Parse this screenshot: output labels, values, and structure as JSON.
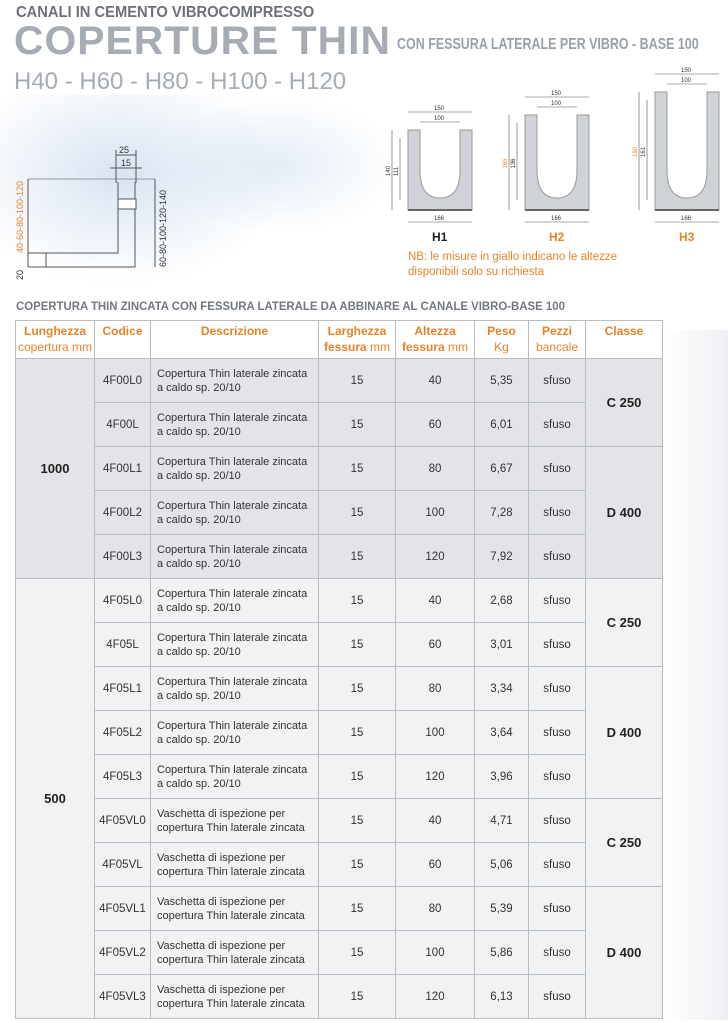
{
  "header": {
    "kicker": "CANALI IN CEMENTO VIBROCOMPRESSO",
    "title": "COPERTURE THIN",
    "subtitle": "CON FESSURA LATERALE PER VIBRO - BASE 100",
    "heights": "H40 - H60 - H80 - H100 - H120"
  },
  "section_drawing": {
    "dim_top_outer": "25",
    "dim_top_inner": "15",
    "dim_left": "40-60-80-100-120",
    "dim_left_bottom": "20",
    "dim_right": "60-80-100-120-140"
  },
  "profiles": [
    {
      "label": "H1",
      "color": "#222222",
      "width_outer": "150",
      "width_inner": "100",
      "height_outer": "140",
      "height_inner": "111",
      "base": "166"
    },
    {
      "label": "H2",
      "color": "#e8822a",
      "width_outer": "150",
      "width_inner": "100",
      "height_outer": "165",
      "height_inner": "136",
      "base": "166"
    },
    {
      "label": "H3",
      "color": "#e8822a",
      "width_outer": "150",
      "width_inner": "100",
      "height_outer": "190",
      "height_inner": "161",
      "base": "166"
    }
  ],
  "note": "NB: le misure in giallo indicano le altezze disponibili solo su richiesta",
  "table": {
    "caption": "COPERTURA THIN ZINCATA CON FESSURA LATERALE DA ABBINARE AL CANALE VIBRO-BASE 100",
    "headers": [
      {
        "main": "Lunghezza",
        "sub": "copertura mm"
      },
      {
        "main": "Codice",
        "sub": ""
      },
      {
        "main": "Descrizione",
        "sub": ""
      },
      {
        "main": "Larghezza",
        "sub2": "fessura",
        "sub": "mm"
      },
      {
        "main": "Altezza",
        "sub2": "fessura",
        "sub": "mm"
      },
      {
        "main": "Peso",
        "sub": "Kg"
      },
      {
        "main": "Pezzi",
        "sub": "bancale"
      },
      {
        "main": "Classe",
        "sub": ""
      }
    ],
    "groups": [
      {
        "length": "1000",
        "classes": [
          {
            "label": "C 250",
            "rows": 2
          },
          {
            "label": "D 400",
            "rows": 3
          }
        ],
        "rows": [
          {
            "code": "4F00L0",
            "desc": [
              "Copertura Thin laterale zincata",
              "a caldo sp. 20/10"
            ],
            "width": "15",
            "height": "40",
            "weight": "5,35",
            "pieces": "sfuso"
          },
          {
            "code": "4F00L",
            "desc": [
              "Copertura Thin laterale zincata",
              "a caldo sp. 20/10"
            ],
            "width": "15",
            "height": "60",
            "weight": "6,01",
            "pieces": "sfuso"
          },
          {
            "code": "4F00L1",
            "desc": [
              "Copertura Thin laterale zincata",
              "a caldo sp. 20/10"
            ],
            "width": "15",
            "height": "80",
            "weight": "6,67",
            "pieces": "sfuso"
          },
          {
            "code": "4F00L2",
            "desc": [
              "Copertura Thin laterale zincata",
              "a caldo sp. 20/10"
            ],
            "width": "15",
            "height": "100",
            "weight": "7,28",
            "pieces": "sfuso"
          },
          {
            "code": "4F00L3",
            "desc": [
              "Copertura Thin laterale zincata",
              "a caldo sp. 20/10"
            ],
            "width": "15",
            "height": "120",
            "weight": "7,92",
            "pieces": "sfuso"
          }
        ]
      },
      {
        "length": "500",
        "classes": [
          {
            "label": "C 250",
            "rows": 2
          },
          {
            "label": "D 400",
            "rows": 3
          },
          {
            "label": "C 250",
            "rows": 2
          },
          {
            "label": "D 400",
            "rows": 3
          }
        ],
        "rows": [
          {
            "code": "4F05L0",
            "desc": [
              "Copertura Thin laterale zincata",
              "a caldo sp. 20/10"
            ],
            "width": "15",
            "height": "40",
            "weight": "2,68",
            "pieces": "sfuso"
          },
          {
            "code": "4F05L",
            "desc": [
              "Copertura Thin laterale zincata",
              "a caldo sp. 20/10"
            ],
            "width": "15",
            "height": "60",
            "weight": "3,01",
            "pieces": "sfuso"
          },
          {
            "code": "4F05L1",
            "desc": [
              "Copertura Thin laterale zincata",
              "a caldo sp. 20/10"
            ],
            "width": "15",
            "height": "80",
            "weight": "3,34",
            "pieces": "sfuso"
          },
          {
            "code": "4F05L2",
            "desc": [
              "Copertura Thin laterale zincata",
              "a caldo sp. 20/10"
            ],
            "width": "15",
            "height": "100",
            "weight": "3,64",
            "pieces": "sfuso"
          },
          {
            "code": "4F05L3",
            "desc": [
              "Copertura Thin laterale zincata",
              "a caldo sp. 20/10"
            ],
            "width": "15",
            "height": "120",
            "weight": "3,96",
            "pieces": "sfuso"
          },
          {
            "code": "4F05VL0",
            "desc": [
              "Vaschetta di ispezione per",
              "copertura Thin laterale zincata"
            ],
            "width": "15",
            "height": "40",
            "weight": "4,71",
            "pieces": "sfuso"
          },
          {
            "code": "4F05VL",
            "desc": [
              "Vaschetta di ispezione per",
              "copertura Thin laterale zincata"
            ],
            "width": "15",
            "height": "60",
            "weight": "5,06",
            "pieces": "sfuso"
          },
          {
            "code": "4F05VL1",
            "desc": [
              "Vaschetta di ispezione per",
              "copertura Thin laterale zincata"
            ],
            "width": "15",
            "height": "80",
            "weight": "5,39",
            "pieces": "sfuso"
          },
          {
            "code": "4F05VL2",
            "desc": [
              "Vaschetta di ispezione per",
              "copertura Thin laterale zincata"
            ],
            "width": "15",
            "height": "100",
            "weight": "5,86",
            "pieces": "sfuso"
          },
          {
            "code": "4F05VL3",
            "desc": [
              "Vaschetta di ispezione per",
              "copertura Thin laterale zincata"
            ],
            "width": "15",
            "height": "120",
            "weight": "6,13",
            "pieces": "sfuso"
          }
        ]
      }
    ]
  }
}
